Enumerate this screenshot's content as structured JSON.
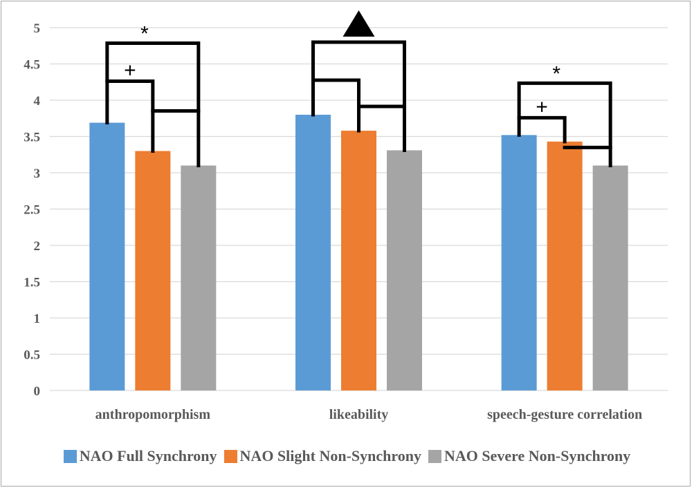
{
  "chart_data": {
    "type": "bar",
    "categories": [
      "anthropomorphism",
      "likeability",
      "speech-gesture correlation"
    ],
    "series": [
      {
        "name": "NAO Full Synchrony",
        "color": "#5b9bd5",
        "values": [
          3.69,
          3.8,
          3.52
        ]
      },
      {
        "name": "NAO Slight Non-Synchrony",
        "color": "#ed7d31",
        "values": [
          3.3,
          3.58,
          3.43
        ]
      },
      {
        "name": "NAO Severe Non-Synchrony",
        "color": "#a5a5a5",
        "values": [
          3.1,
          3.31,
          3.1
        ]
      }
    ],
    "ylim": [
      0,
      5
    ],
    "yticks": [
      "0",
      "0.5",
      "1",
      "1.5",
      "2",
      "2.5",
      "3",
      "3.5",
      "4",
      "4.5",
      "5"
    ],
    "grid": true,
    "legend_position": "bottom",
    "significance_markers": [
      {
        "category": "anthropomorphism",
        "outer": "*",
        "inner": "+"
      },
      {
        "category": "likeability",
        "outer": "▲",
        "inner": ""
      },
      {
        "category": "speech-gesture correlation",
        "outer": "*",
        "inner": "+"
      }
    ]
  }
}
